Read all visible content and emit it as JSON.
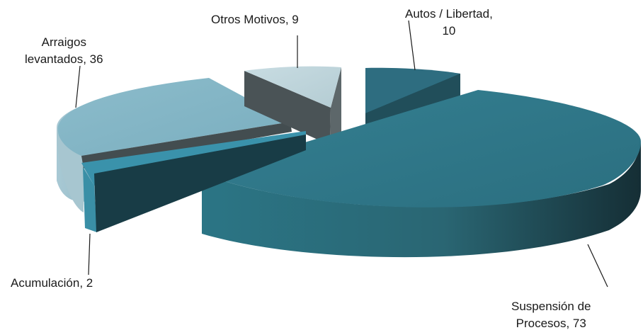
{
  "chart_data": {
    "type": "pie",
    "style": "3d-exploded",
    "title": "",
    "legend": "none",
    "slices": [
      {
        "name": "Autos / Libertad",
        "value": 10,
        "label_lines": [
          "Autos / Libertad,",
          "10"
        ],
        "color": "#2e6d80"
      },
      {
        "name": "Suspensión de Procesos",
        "value": 73,
        "label_lines": [
          "Suspensión de",
          "Procesos, 73"
        ],
        "color": "#2f7a8c"
      },
      {
        "name": "Acumulación",
        "value": 2,
        "label_lines": [
          "Acumulación, 2"
        ],
        "color": "#3a92ab"
      },
      {
        "name": "Arraigos levantados",
        "value": 36,
        "label_lines": [
          "Arraigos",
          "levantados, 36"
        ],
        "color": "#86b8c8"
      },
      {
        "name": "Otros Motivos",
        "value": 9,
        "label_lines": [
          "Otros Motivos, 9"
        ],
        "color": "#bcd3da"
      }
    ]
  }
}
